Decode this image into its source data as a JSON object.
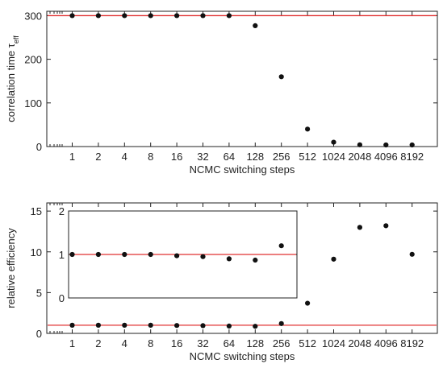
{
  "chart_data": [
    {
      "type": "scatter",
      "x_scale": "log2",
      "x": [
        1,
        2,
        4,
        8,
        16,
        32,
        64,
        128,
        256,
        512,
        1024,
        2048,
        4096,
        8192
      ],
      "xtick_labels": [
        "1",
        "2",
        "4",
        "8",
        "16",
        "32",
        "64",
        "128",
        "256",
        "512",
        "1024",
        "2048",
        "4096",
        "8192"
      ],
      "xlabel": "NCMC switching steps",
      "ylabel": "correlation time τ",
      "ylabel_sub": "eff",
      "ylim": [
        0,
        310
      ],
      "yticks": [
        0,
        100,
        200,
        300
      ],
      "ytick_labels": [
        "0",
        "100",
        "200",
        "300"
      ],
      "grid": false,
      "series": [
        {
          "values": [
            300,
            300,
            300,
            300,
            300,
            300,
            300,
            277,
            160,
            40,
            10,
            4,
            2,
            1
          ]
        }
      ],
      "reference_line": {
        "y": 300,
        "color": "#e03030"
      }
    },
    {
      "type": "scatter",
      "x_scale": "log2",
      "x": [
        1,
        2,
        4,
        8,
        16,
        32,
        64,
        128,
        256,
        512,
        1024,
        2048,
        4096,
        8192
      ],
      "xtick_labels": [
        "1",
        "2",
        "4",
        "8",
        "16",
        "32",
        "64",
        "128",
        "256",
        "512",
        "1024",
        "2048",
        "4096",
        "8192"
      ],
      "xlabel": "NCMC switching steps",
      "ylabel": "relative efficiency",
      "ylim": [
        0,
        16
      ],
      "yticks": [
        0,
        5,
        10,
        15
      ],
      "ytick_labels": [
        "0",
        "5",
        "10",
        "15"
      ],
      "grid": false,
      "series": [
        {
          "values": [
            1.0,
            1.0,
            1.0,
            1.0,
            0.97,
            0.95,
            0.9,
            0.87,
            1.2,
            3.7,
            9.1,
            13.0,
            13.2,
            9.7
          ]
        }
      ],
      "reference_line": {
        "y": 1,
        "color": "#e03030"
      },
      "inset": {
        "x": [
          1,
          2,
          4,
          8,
          16,
          32,
          64,
          128,
          256
        ],
        "values": [
          1.0,
          1.0,
          1.0,
          1.0,
          0.97,
          0.95,
          0.9,
          0.87,
          1.2
        ],
        "ylim": [
          0,
          2
        ],
        "yticks": [
          0,
          1,
          2
        ],
        "ytick_labels": [
          "0",
          "1",
          "2"
        ],
        "reference_line": {
          "y": 1,
          "color": "#e03030"
        }
      }
    }
  ]
}
